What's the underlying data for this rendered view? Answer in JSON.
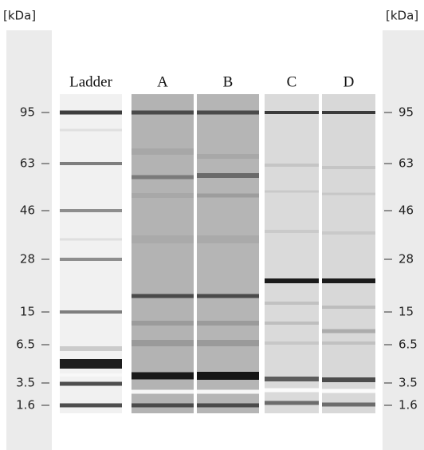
{
  "unit_labels": {
    "left": "[kDa]",
    "right": "[kDa]"
  },
  "lanes": [
    "Ladder",
    "A",
    "B",
    "C",
    "D"
  ],
  "markers": {
    "left": [
      "95",
      "63",
      "46",
      "28",
      "15",
      "6.5",
      "3.5",
      "1.6"
    ],
    "right": [
      "95",
      "63",
      "46",
      "28",
      "15",
      "6.5",
      "3.5",
      "1.6"
    ]
  }
}
